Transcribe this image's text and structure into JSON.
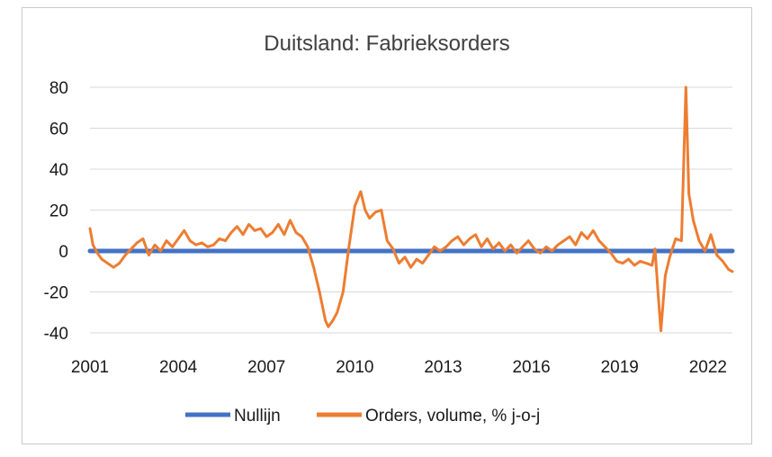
{
  "chart_data": {
    "type": "line",
    "title": "Duitsland: Fabrieksorders",
    "xlabel": "",
    "ylabel": "",
    "xlim": [
      2001,
      2022.83
    ],
    "ylim": [
      -40,
      80
    ],
    "y_ticks": [
      80,
      60,
      40,
      20,
      0,
      -20,
      -40
    ],
    "x_ticks": [
      2001,
      2004,
      2007,
      2010,
      2013,
      2016,
      2019,
      2022
    ],
    "grid": "horizontal",
    "legend_position": "bottom",
    "series": [
      {
        "name": "Nullijn",
        "color": "#4472C4",
        "x": [
          2001,
          2022.83
        ],
        "values": [
          0,
          0
        ]
      },
      {
        "name": "Orders, volume, % j-o-j",
        "color": "#ED7D31",
        "x": [
          2001.0,
          2001.1,
          2001.25,
          2001.4,
          2001.6,
          2001.8,
          2002.0,
          2002.2,
          2002.4,
          2002.6,
          2002.8,
          2003.0,
          2003.2,
          2003.4,
          2003.6,
          2003.8,
          2004.0,
          2004.2,
          2004.4,
          2004.6,
          2004.8,
          2005.0,
          2005.2,
          2005.4,
          2005.6,
          2005.8,
          2006.0,
          2006.2,
          2006.4,
          2006.6,
          2006.8,
          2007.0,
          2007.2,
          2007.4,
          2007.6,
          2007.8,
          2008.0,
          2008.2,
          2008.4,
          2008.6,
          2008.8,
          2009.0,
          2009.1,
          2009.25,
          2009.4,
          2009.6,
          2009.8,
          2010.0,
          2010.2,
          2010.35,
          2010.5,
          2010.7,
          2010.9,
          2011.1,
          2011.3,
          2011.5,
          2011.7,
          2011.9,
          2012.1,
          2012.3,
          2012.5,
          2012.7,
          2012.9,
          2013.1,
          2013.3,
          2013.5,
          2013.7,
          2013.9,
          2014.1,
          2014.3,
          2014.5,
          2014.7,
          2014.9,
          2015.1,
          2015.3,
          2015.5,
          2015.7,
          2015.9,
          2016.1,
          2016.3,
          2016.5,
          2016.7,
          2016.9,
          2017.1,
          2017.3,
          2017.5,
          2017.7,
          2017.9,
          2018.1,
          2018.3,
          2018.5,
          2018.7,
          2018.9,
          2019.1,
          2019.3,
          2019.5,
          2019.7,
          2019.9,
          2020.1,
          2020.2,
          2020.3,
          2020.4,
          2020.55,
          2020.7,
          2020.9,
          2021.1,
          2021.25,
          2021.35,
          2021.5,
          2021.7,
          2021.9,
          2022.1,
          2022.3,
          2022.5,
          2022.7,
          2022.83
        ],
        "values": [
          11,
          3,
          -1,
          -4,
          -6,
          -8,
          -6,
          -2,
          1,
          4,
          6,
          -2,
          3,
          0,
          5,
          2,
          6,
          10,
          5,
          3,
          4,
          2,
          3,
          6,
          5,
          9,
          12,
          8,
          13,
          10,
          11,
          7,
          9,
          13,
          8,
          15,
          9,
          7,
          2,
          -8,
          -20,
          -34,
          -37,
          -34,
          -30,
          -20,
          2,
          22,
          29,
          20,
          16,
          19,
          20,
          5,
          1,
          -6,
          -3,
          -8,
          -4,
          -6,
          -2,
          2,
          0,
          2,
          5,
          7,
          3,
          6,
          8,
          2,
          6,
          1,
          4,
          0,
          3,
          -1,
          2,
          5,
          1,
          -1,
          2,
          0,
          3,
          5,
          7,
          3,
          9,
          6,
          10,
          5,
          2,
          -1,
          -5,
          -6,
          -4,
          -7,
          -5,
          -6,
          -7,
          1,
          -20,
          -39,
          -12,
          -3,
          6,
          5,
          80,
          28,
          15,
          5,
          0,
          8,
          -2,
          -5,
          -9,
          -10
        ]
      }
    ]
  }
}
